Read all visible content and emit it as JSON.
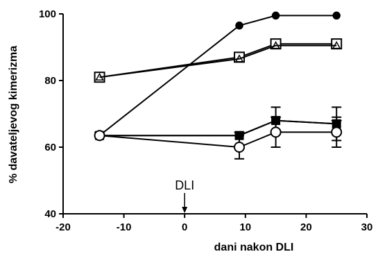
{
  "chart_data": {
    "type": "line",
    "title": "",
    "xlabel": "dani nakon DLI",
    "ylabel": "% davateljevog kimerizma",
    "xlim": [
      -20,
      30
    ],
    "ylim": [
      40,
      100
    ],
    "x_ticks": [
      -20,
      -10,
      0,
      10,
      20,
      30
    ],
    "x_tick_labels": [
      "-20",
      "-10",
      "0",
      "10",
      "20",
      "30"
    ],
    "y_ticks": [
      40,
      60,
      80,
      100
    ],
    "y_tick_labels": [
      "40",
      "60",
      "80",
      "100"
    ],
    "grid": false,
    "legend": "none",
    "annotations": [
      {
        "text": "DLI",
        "x": 0,
        "arrow": "down"
      }
    ],
    "series": [
      {
        "marker": "filled-circle",
        "x": [
          -14,
          9,
          15,
          25
        ],
        "y": [
          63.5,
          96.5,
          99.5,
          99.5
        ],
        "err": [
          0,
          0,
          0,
          0
        ]
      },
      {
        "marker": "open-square",
        "x": [
          -14,
          9,
          15,
          25
        ],
        "y": [
          81,
          87,
          91,
          91
        ],
        "err": [
          0,
          0,
          0,
          0
        ]
      },
      {
        "marker": "open-triangle",
        "x": [
          -14,
          9,
          15,
          25
        ],
        "y": [
          81,
          86.5,
          90.5,
          90.5
        ],
        "err": [
          0,
          0,
          0,
          0
        ]
      },
      {
        "marker": "filled-square",
        "x": [
          -14,
          9,
          15,
          25
        ],
        "y": [
          63.5,
          63.5,
          68,
          67
        ],
        "err": [
          0,
          0,
          0,
          0
        ]
      },
      {
        "marker": "filled-triangle-down",
        "x": [
          -14,
          9,
          15,
          25
        ],
        "y": [
          63.5,
          63.5,
          68,
          67
        ],
        "err": [
          0,
          0,
          4,
          5
        ]
      },
      {
        "marker": "open-circle",
        "x": [
          -14,
          9,
          15,
          25
        ],
        "y": [
          63.5,
          60,
          64.5,
          64.5
        ],
        "err": [
          0,
          3.5,
          4.5,
          4.5
        ]
      }
    ],
    "colors": {
      "line": "#000000",
      "background": "#ffffff"
    }
  }
}
